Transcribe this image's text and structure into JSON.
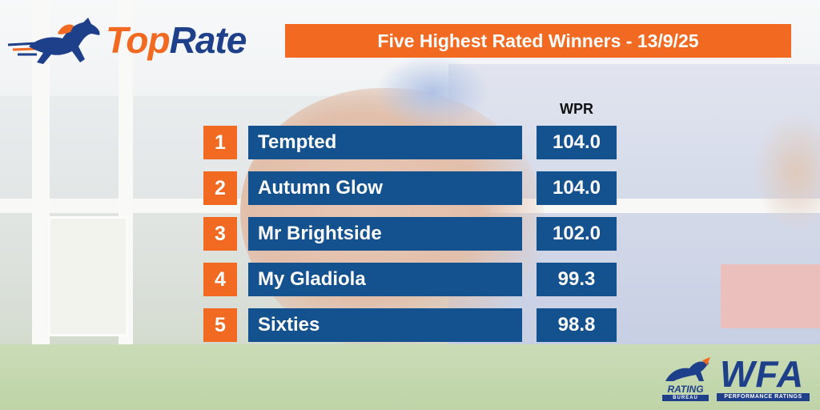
{
  "logo": {
    "part1": "Top",
    "part2": "Rate"
  },
  "title": "Five Highest Rated Winners - 13/9/25",
  "column_header": "WPR",
  "rows": [
    {
      "rank": "1",
      "name": "Tempted",
      "wpr": "104.0"
    },
    {
      "rank": "2",
      "name": "Autumn Glow",
      "wpr": "104.0"
    },
    {
      "rank": "3",
      "name": "Mr Brightside",
      "wpr": "102.0"
    },
    {
      "rank": "4",
      "name": "My Gladiola",
      "wpr": "99.3"
    },
    {
      "rank": "5",
      "name": "Sixties",
      "wpr": "98.8"
    }
  ],
  "footer": {
    "rating_bureau_text": "RATING",
    "rating_bureau_sub": "BUREAU",
    "wfa_text": "WFA",
    "wfa_sub": "PERFORMANCE RATINGS"
  },
  "colors": {
    "accent_orange": "#f26a21",
    "row_blue": "#14518f",
    "logo_navy": "#1e3f8a"
  }
}
